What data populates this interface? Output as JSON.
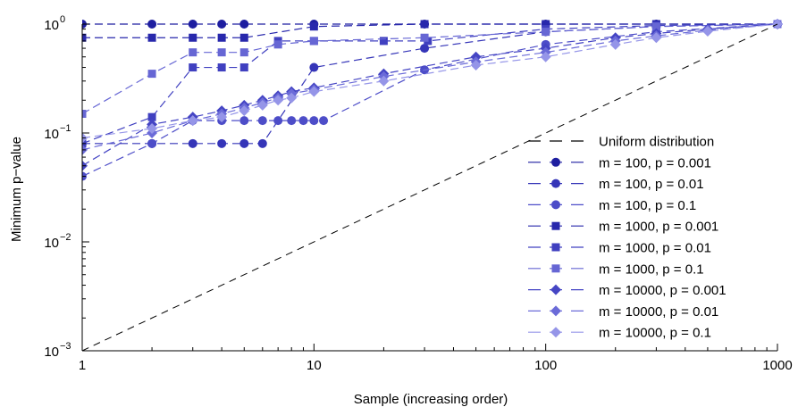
{
  "chart_data": {
    "type": "line",
    "x_scale": "log",
    "y_scale": "log",
    "xlim": [
      1,
      1000
    ],
    "ylim": [
      0.001,
      1
    ],
    "xlabel": "Sample (increasing order)",
    "ylabel": "Minimum p−value",
    "x_ticks": [
      {
        "value": 1,
        "label": "1"
      },
      {
        "value": 10,
        "label": "10"
      },
      {
        "value": 100,
        "label": "100"
      },
      {
        "value": 1000,
        "label": "1000"
      }
    ],
    "y_ticks": [
      {
        "value": 0.001,
        "mantissa": "10",
        "exp": "−3"
      },
      {
        "value": 0.01,
        "mantissa": "10",
        "exp": "−2"
      },
      {
        "value": 0.1,
        "mantissa": "10",
        "exp": "−1"
      },
      {
        "value": 1,
        "mantissa": "10",
        "exp": "0"
      }
    ],
    "grid": false,
    "legend_position": "center-right",
    "reference": {
      "name": "Uniform distribution",
      "x": [
        1,
        1000
      ],
      "y": [
        0.001,
        1
      ],
      "color": "#000000"
    },
    "series": [
      {
        "name": "m = 100, p = 0.001",
        "marker": "circle",
        "color": "#1e1ea0",
        "x": [
          1,
          2,
          3,
          4,
          5,
          10,
          30,
          100,
          300,
          1000
        ],
        "y": [
          1,
          1,
          1,
          1,
          1,
          1,
          1,
          1,
          1,
          1
        ]
      },
      {
        "name": "m = 100, p = 0.01",
        "marker": "circle",
        "color": "#3535b8",
        "x": [
          1,
          2,
          3,
          4,
          5,
          6,
          10,
          30,
          100,
          300,
          1000
        ],
        "y": [
          0.08,
          0.08,
          0.08,
          0.08,
          0.08,
          0.08,
          0.4,
          0.6,
          0.85,
          0.95,
          1
        ]
      },
      {
        "name": "m = 100, p = 0.1",
        "marker": "circle",
        "color": "#4d4dc8",
        "x": [
          1,
          2,
          3,
          4,
          5,
          6,
          7,
          8,
          9,
          10,
          11,
          30,
          100,
          300,
          1000
        ],
        "y": [
          0.04,
          0.08,
          0.13,
          0.13,
          0.13,
          0.13,
          0.13,
          0.13,
          0.13,
          0.13,
          0.13,
          0.38,
          0.65,
          0.85,
          1
        ]
      },
      {
        "name": "m = 1000, p = 0.001",
        "marker": "square",
        "color": "#2828ac",
        "x": [
          1,
          2,
          3,
          4,
          5,
          10,
          30,
          100,
          300,
          1000
        ],
        "y": [
          0.75,
          0.75,
          0.75,
          0.75,
          0.75,
          0.95,
          1,
          1,
          1,
          1
        ]
      },
      {
        "name": "m = 1000, p = 0.01",
        "marker": "square",
        "color": "#4040c0",
        "x": [
          1,
          2,
          3,
          4,
          5,
          7,
          10,
          20,
          31,
          100,
          300,
          1000
        ],
        "y": [
          0.08,
          0.14,
          0.4,
          0.4,
          0.4,
          0.7,
          0.7,
          0.7,
          0.7,
          0.9,
          0.97,
          1
        ]
      },
      {
        "name": "m = 1000, p = 0.1",
        "marker": "square",
        "color": "#6666d4",
        "x": [
          1,
          2,
          3,
          4,
          5,
          7,
          10,
          30,
          100,
          300,
          1000
        ],
        "y": [
          0.15,
          0.35,
          0.55,
          0.55,
          0.55,
          0.65,
          0.7,
          0.75,
          0.85,
          0.95,
          1
        ]
      },
      {
        "name": "m = 10000, p = 0.001",
        "marker": "diamond",
        "color": "#4545c4",
        "x": [
          1,
          2,
          3,
          4,
          5,
          6,
          7,
          8,
          10,
          20,
          50,
          100,
          200,
          300,
          500,
          1000
        ],
        "y": [
          0.05,
          0.12,
          0.14,
          0.16,
          0.18,
          0.2,
          0.22,
          0.24,
          0.26,
          0.35,
          0.5,
          0.6,
          0.75,
          0.82,
          0.9,
          1
        ]
      },
      {
        "name": "m = 10000, p = 0.01",
        "marker": "diamond",
        "color": "#6b6bd8",
        "x": [
          1,
          2,
          3,
          4,
          5,
          6,
          7,
          8,
          10,
          20,
          50,
          100,
          200,
          300,
          500,
          1000
        ],
        "y": [
          0.07,
          0.1,
          0.13,
          0.15,
          0.17,
          0.19,
          0.21,
          0.23,
          0.25,
          0.33,
          0.45,
          0.55,
          0.7,
          0.78,
          0.88,
          1
        ]
      },
      {
        "name": "m = 10000, p = 0.1",
        "marker": "diamond",
        "color": "#9595e8",
        "x": [
          1,
          2,
          3,
          4,
          5,
          6,
          7,
          8,
          10,
          20,
          50,
          100,
          200,
          300,
          500,
          1000
        ],
        "y": [
          0.09,
          0.11,
          0.13,
          0.14,
          0.16,
          0.18,
          0.2,
          0.21,
          0.24,
          0.3,
          0.42,
          0.5,
          0.65,
          0.75,
          0.86,
          1
        ]
      }
    ]
  }
}
